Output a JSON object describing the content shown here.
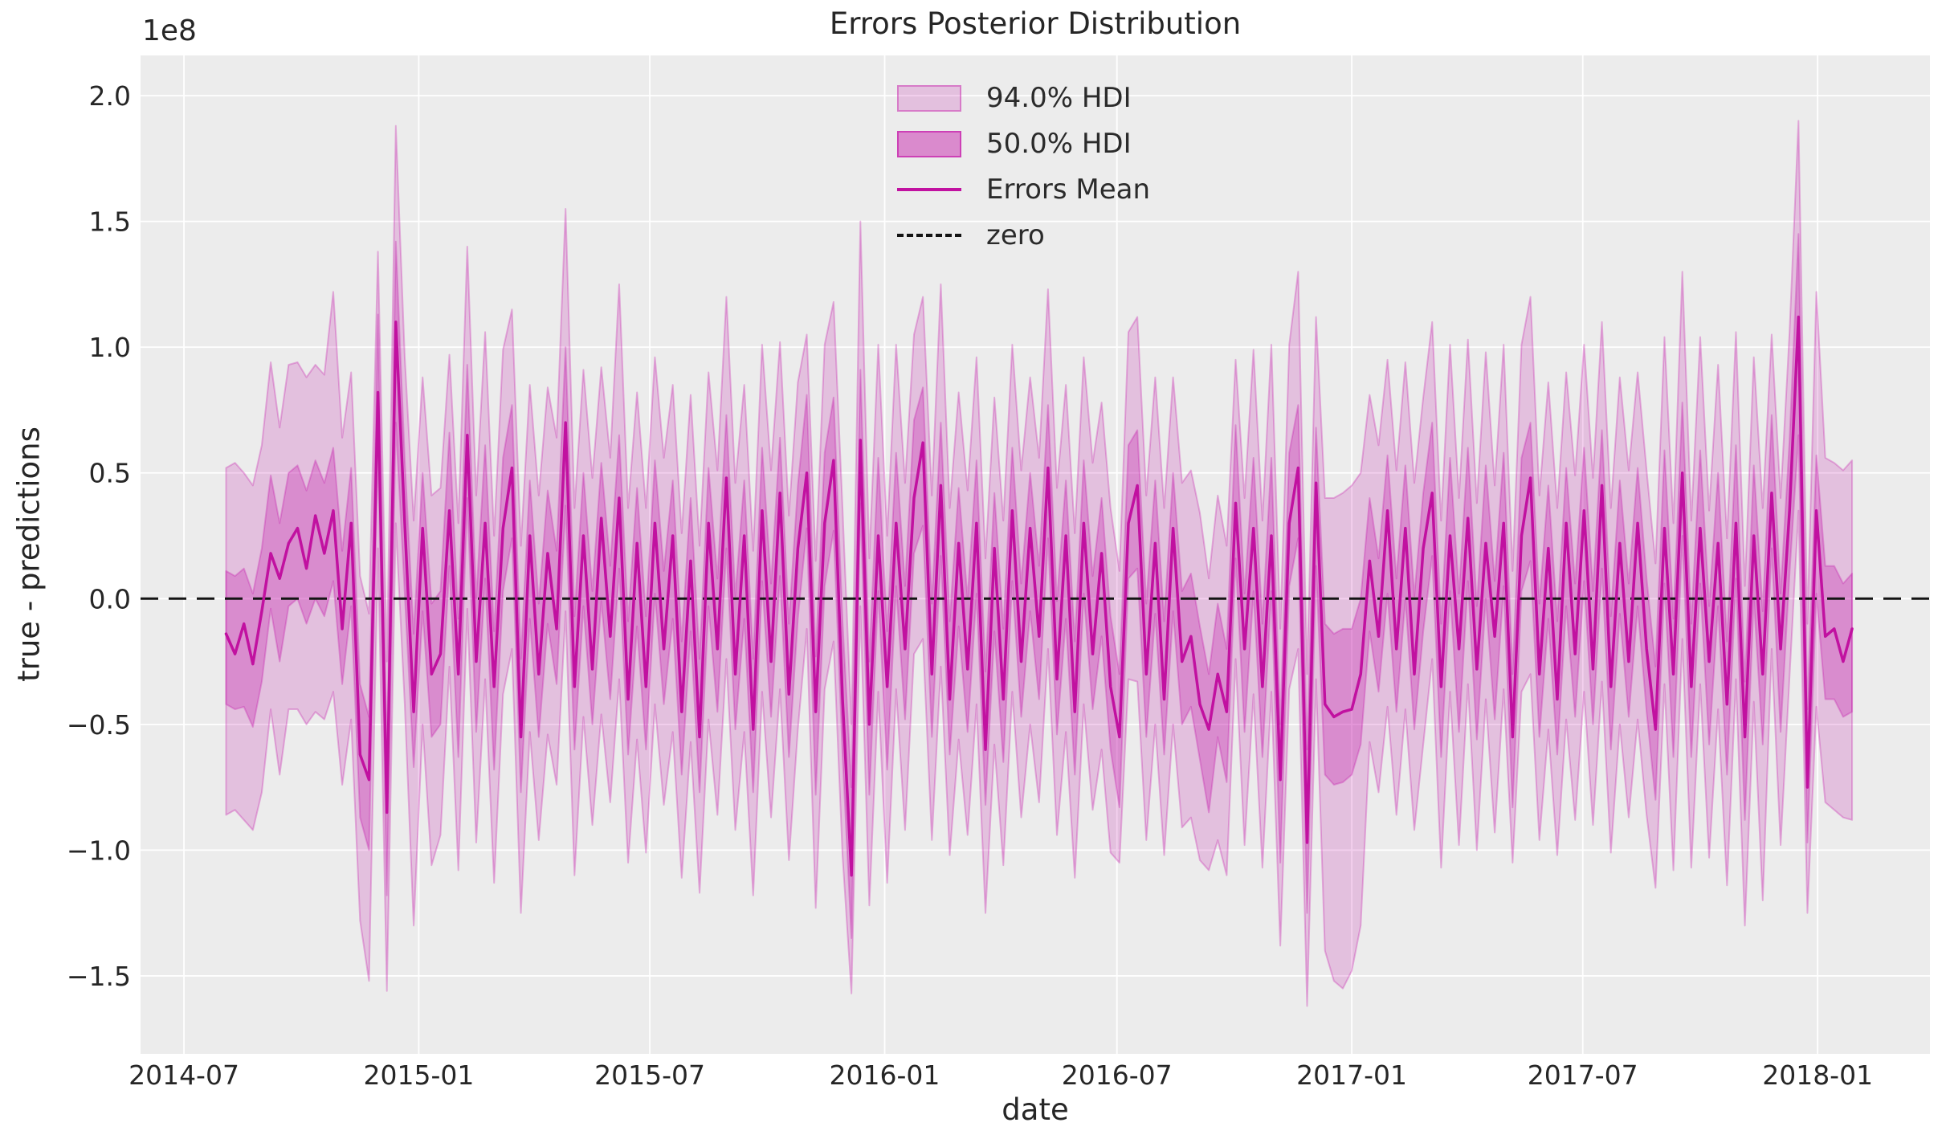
{
  "title": "Errors Posterior Distribution",
  "axes": {
    "xlabel": "date",
    "ylabel": "true - predictions",
    "offset_text": "1e8"
  },
  "legend": [
    {
      "label": "94.0% HDI",
      "swatch": "hdi94"
    },
    {
      "label": "50.0% HDI",
      "swatch": "hdi50"
    },
    {
      "label": "Errors Mean",
      "swatch": "mean"
    },
    {
      "label": "zero",
      "swatch": "zero"
    }
  ],
  "style": {
    "figure_bg": "#ffffff",
    "axes_bg": "#ececec",
    "grid_color": "#ffffff",
    "hdi94_fill": "rgba(197,19,168,0.20)",
    "hdi50_fill": "rgba(197,19,168,0.30)",
    "band_edge": "rgba(197,19,168,0.30)",
    "mean_line": "#c111a0",
    "zero_line": "#141414",
    "text_color": "#262626"
  },
  "chart_data": {
    "type": "line",
    "title": "Errors Posterior Distribution",
    "xlabel": "date",
    "ylabel": "true - predictions",
    "y_scale_factor": 100000000.0,
    "grid": true,
    "legend_position": "upper center",
    "x_start": "2014-08-03",
    "x_interval_days": 7,
    "n_points": 183,
    "xlim": [
      "2014-05-28",
      "2018-03-30"
    ],
    "ylim": [
      -1.81,
      2.16
    ],
    "x_ticks": [
      "2014-07-01",
      "2015-01-01",
      "2015-07-01",
      "2016-01-01",
      "2016-07-01",
      "2017-01-01",
      "2017-07-01",
      "2018-01-01"
    ],
    "x_tick_labels": [
      "2014-07",
      "2015-01",
      "2015-07",
      "2016-01",
      "2016-07",
      "2017-01",
      "2017-07",
      "2018-01"
    ],
    "y_ticks": [
      2.0,
      1.5,
      1.0,
      0.5,
      0.0,
      -0.5,
      -1.0,
      -1.5
    ],
    "y_tick_labels": [
      "2.0",
      "1.5",
      "1.0",
      "0.5",
      "0.0",
      "−0.5",
      "−1.0",
      "−1.5"
    ],
    "zero_value": 0,
    "series": [
      {
        "name": "Errors Mean",
        "type": "line",
        "values": [
          -0.14,
          -0.22,
          -0.1,
          -0.26,
          -0.05,
          0.18,
          0.08,
          0.22,
          0.28,
          0.12,
          0.33,
          0.18,
          0.35,
          -0.12,
          0.3,
          -0.62,
          -0.72,
          0.82,
          -0.85,
          1.1,
          0.3,
          -0.45,
          0.28,
          -0.3,
          -0.22,
          0.35,
          -0.3,
          0.65,
          -0.25,
          0.3,
          -0.35,
          0.28,
          0.52,
          -0.55,
          0.25,
          -0.3,
          0.18,
          -0.12,
          0.7,
          -0.35,
          0.25,
          -0.28,
          0.32,
          -0.15,
          0.4,
          -0.4,
          0.22,
          -0.35,
          0.3,
          -0.2,
          0.25,
          -0.45,
          0.15,
          -0.55,
          0.3,
          -0.2,
          0.48,
          -0.3,
          0.25,
          -0.52,
          0.35,
          -0.25,
          0.42,
          -0.38,
          0.2,
          0.5,
          -0.45,
          0.3,
          0.55,
          -0.4,
          -1.1,
          0.63,
          -0.5,
          0.25,
          -0.35,
          0.3,
          -0.2,
          0.4,
          0.62,
          -0.3,
          0.45,
          -0.4,
          0.22,
          -0.28,
          0.3,
          -0.6,
          0.2,
          -0.4,
          0.35,
          -0.25,
          0.28,
          -0.15,
          0.52,
          -0.32,
          0.25,
          -0.45,
          0.3,
          -0.22,
          0.18,
          -0.35,
          -0.55,
          0.3,
          0.45,
          -0.3,
          0.22,
          -0.4,
          0.28,
          -0.25,
          -0.15,
          -0.42,
          -0.52,
          -0.3,
          -0.45,
          0.38,
          -0.2,
          0.28,
          -0.35,
          0.25,
          -0.72,
          0.3,
          0.52,
          -0.97,
          0.46,
          -0.42,
          -0.47,
          -0.45,
          -0.44,
          -0.3,
          0.15,
          -0.15,
          0.35,
          -0.2,
          0.28,
          -0.3,
          0.2,
          0.42,
          -0.35,
          0.25,
          -0.2,
          0.32,
          -0.28,
          0.22,
          -0.15,
          0.3,
          -0.55,
          0.25,
          0.48,
          -0.3,
          0.2,
          -0.4,
          0.3,
          -0.22,
          0.35,
          -0.28,
          0.45,
          -0.35,
          0.22,
          -0.25,
          0.3,
          -0.2,
          -0.52,
          0.28,
          -0.3,
          0.5,
          -0.35,
          0.28,
          -0.25,
          0.22,
          -0.42,
          0.3,
          -0.55,
          0.25,
          -0.3,
          0.42,
          -0.2,
          0.35,
          1.12,
          -0.75,
          0.35,
          -0.15,
          -0.12,
          -0.25,
          -0.12
        ]
      },
      {
        "name": "50.0% HDI",
        "type": "band",
        "high": [
          0.11,
          0.09,
          0.12,
          0.02,
          0.2,
          0.49,
          0.3,
          0.5,
          0.53,
          0.43,
          0.55,
          0.46,
          0.6,
          0.19,
          0.52,
          -0.34,
          -0.47,
          1.13,
          -0.63,
          1.42,
          0.55,
          -0.14,
          0.5,
          -0.02,
          0.03,
          0.66,
          -0.08,
          0.93,
          0.0,
          0.61,
          -0.13,
          0.56,
          0.77,
          -0.24,
          0.47,
          -0.02,
          0.43,
          0.19,
          1.0,
          -0.07,
          0.5,
          0.03,
          0.54,
          0.13,
          0.65,
          -0.09,
          0.44,
          -0.07,
          0.55,
          0.11,
          0.47,
          -0.17,
          0.4,
          -0.24,
          0.52,
          0.08,
          0.73,
          0.01,
          0.47,
          -0.24,
          0.6,
          0.06,
          0.64,
          -0.1,
          0.45,
          0.81,
          -0.23,
          0.58,
          0.8,
          -0.09,
          -0.75,
          0.91,
          -0.25,
          0.56,
          -0.13,
          0.58,
          0.05,
          0.71,
          0.84,
          -0.02,
          0.7,
          -0.09,
          0.44,
          0.0,
          0.55,
          -0.29,
          0.42,
          -0.12,
          0.6,
          0.06,
          0.5,
          0.13,
          0.77,
          -0.01,
          0.47,
          -0.17,
          0.55,
          0.09,
          0.4,
          -0.07,
          -0.3,
          0.61,
          0.67,
          -0.02,
          0.47,
          -0.09,
          0.5,
          0.03,
          0.1,
          -0.11,
          -0.3,
          -0.02,
          -0.2,
          0.69,
          0.02,
          0.56,
          -0.1,
          0.56,
          -0.5,
          0.58,
          0.77,
          -0.6,
          0.68,
          -0.1,
          -0.14,
          -0.12,
          -0.12,
          0.0,
          0.4,
          0.16,
          0.57,
          0.08,
          0.53,
          0.01,
          0.42,
          0.7,
          -0.1,
          0.56,
          0.02,
          0.6,
          -0.03,
          0.53,
          0.07,
          0.58,
          -0.3,
          0.56,
          0.7,
          -0.02,
          0.45,
          -0.09,
          0.52,
          0.06,
          0.6,
          0.03,
          0.67,
          -0.07,
          0.47,
          0.06,
          0.52,
          0.08,
          -0.27,
          0.59,
          -0.08,
          0.78,
          -0.1,
          0.59,
          -0.03,
          0.5,
          -0.17,
          0.61,
          -0.33,
          0.53,
          -0.05,
          0.73,
          0.02,
          0.63,
          1.45,
          -0.44,
          0.57,
          0.13,
          0.13,
          0.06,
          0.1
        ],
        "low": [
          -0.42,
          -0.44,
          -0.43,
          -0.51,
          -0.33,
          -0.04,
          -0.25,
          -0.03,
          0.0,
          -0.1,
          0.0,
          -0.07,
          0.07,
          -0.34,
          -0.03,
          -0.87,
          -1.0,
          0.6,
          -1.18,
          0.7,
          0.02,
          -0.67,
          -0.05,
          -0.55,
          -0.5,
          0.13,
          -0.63,
          0.4,
          -0.53,
          0.08,
          -0.68,
          0.03,
          0.24,
          -0.77,
          -0.08,
          -0.55,
          -0.1,
          -0.34,
          0.37,
          -0.6,
          -0.03,
          -0.5,
          -0.01,
          -0.4,
          0.12,
          -0.62,
          -0.11,
          -0.6,
          0.02,
          -0.42,
          -0.08,
          -0.7,
          -0.13,
          -0.77,
          -0.03,
          -0.45,
          0.2,
          -0.52,
          -0.08,
          -0.77,
          0.07,
          -0.47,
          0.09,
          -0.63,
          -0.08,
          0.28,
          -0.78,
          0.05,
          0.27,
          -0.62,
          -1.35,
          0.38,
          -0.78,
          0.03,
          -0.68,
          0.05,
          -0.48,
          0.18,
          0.29,
          -0.55,
          0.17,
          -0.62,
          -0.11,
          -0.53,
          0.02,
          -0.82,
          -0.13,
          -0.65,
          0.07,
          -0.47,
          -0.05,
          -0.4,
          0.24,
          -0.54,
          -0.08,
          -0.7,
          0.02,
          -0.44,
          -0.15,
          -0.6,
          -0.83,
          0.08,
          0.12,
          -0.55,
          -0.06,
          -0.62,
          -0.05,
          -0.5,
          -0.43,
          -0.64,
          -0.85,
          -0.55,
          -0.73,
          0.16,
          -0.53,
          0.03,
          -0.63,
          0.03,
          -1.05,
          0.05,
          0.24,
          -1.25,
          0.13,
          -0.7,
          -0.74,
          -0.73,
          -0.7,
          -0.58,
          -0.13,
          -0.37,
          0.02,
          -0.45,
          0.0,
          -0.52,
          -0.13,
          0.17,
          -0.63,
          0.03,
          -0.53,
          0.07,
          -0.56,
          0.0,
          -0.48,
          0.05,
          -0.83,
          0.03,
          0.15,
          -0.55,
          -0.08,
          -0.62,
          -0.03,
          -0.47,
          0.07,
          -0.5,
          0.12,
          -0.6,
          -0.06,
          -0.47,
          -0.03,
          -0.45,
          -0.8,
          0.06,
          -0.63,
          0.25,
          -0.63,
          0.06,
          -0.58,
          -0.03,
          -0.7,
          0.08,
          -0.88,
          0.0,
          -0.58,
          0.2,
          -0.53,
          0.1,
          0.65,
          -0.97,
          0.02,
          -0.4,
          -0.4,
          -0.47,
          -0.45
        ]
      },
      {
        "name": "94.0% HDI",
        "type": "band",
        "high": [
          0.52,
          0.54,
          0.5,
          0.45,
          0.61,
          0.94,
          0.68,
          0.93,
          0.94,
          0.88,
          0.93,
          0.89,
          1.22,
          0.64,
          0.9,
          0.09,
          -0.06,
          1.38,
          -0.25,
          1.88,
          0.96,
          0.31,
          0.88,
          0.41,
          0.44,
          0.97,
          0.3,
          1.4,
          0.41,
          1.06,
          0.25,
          0.99,
          1.15,
          0.21,
          0.85,
          0.41,
          0.84,
          0.64,
          1.55,
          0.36,
          0.91,
          0.48,
          0.92,
          0.56,
          1.25,
          0.36,
          0.82,
          0.36,
          0.96,
          0.56,
          0.85,
          0.26,
          0.81,
          0.21,
          0.9,
          0.51,
          1.2,
          0.46,
          0.85,
          0.19,
          1.01,
          0.51,
          1.02,
          0.33,
          0.86,
          1.05,
          0.15,
          1.01,
          1.18,
          0.36,
          -0.5,
          1.5,
          0.16,
          1.01,
          0.25,
          1.01,
          0.46,
          1.05,
          1.2,
          0.41,
          1.25,
          0.36,
          0.82,
          0.43,
          0.96,
          0.16,
          0.8,
          0.31,
          1.01,
          0.51,
          0.88,
          0.56,
          1.23,
          0.44,
          0.85,
          0.26,
          0.96,
          0.54,
          0.78,
          0.36,
          0.11,
          1.06,
          1.12,
          0.41,
          0.88,
          0.36,
          0.88,
          0.46,
          0.51,
          0.34,
          0.08,
          0.41,
          0.21,
          0.95,
          0.4,
          0.99,
          0.31,
          1.01,
          -0.12,
          1.01,
          1.3,
          -0.3,
          1.12,
          0.4,
          0.4,
          0.42,
          0.45,
          0.5,
          0.81,
          0.61,
          0.95,
          0.51,
          0.94,
          0.46,
          0.8,
          1.1,
          0.31,
          1.01,
          0.4,
          1.03,
          0.38,
          0.98,
          0.45,
          1.01,
          0.11,
          1.01,
          1.2,
          0.41,
          0.86,
          0.36,
          0.9,
          0.49,
          1.01,
          0.48,
          1.1,
          0.36,
          0.88,
          0.51,
          0.9,
          0.51,
          0.14,
          1.04,
          0.3,
          1.3,
          0.31,
          1.04,
          0.35,
          0.93,
          0.24,
          1.06,
          0.05,
          0.96,
          0.36,
          1.05,
          0.4,
          1.06,
          1.9,
          -0.1,
          1.22,
          0.56,
          0.54,
          0.51,
          0.55
        ],
        "low": [
          -0.86,
          -0.84,
          -0.88,
          -0.92,
          -0.77,
          -0.44,
          -0.7,
          -0.44,
          -0.44,
          -0.5,
          -0.45,
          -0.48,
          -0.37,
          -0.74,
          -0.48,
          -1.28,
          -1.52,
          0.2,
          -1.56,
          0.3,
          -0.42,
          -1.3,
          -0.5,
          -1.06,
          -0.94,
          -0.27,
          -1.08,
          -0.04,
          -0.97,
          -0.32,
          -1.13,
          -0.38,
          -0.2,
          -1.25,
          -0.53,
          -0.96,
          -0.54,
          -0.74,
          -0.05,
          -1.1,
          -0.47,
          -0.9,
          -0.46,
          -0.81,
          -0.32,
          -1.05,
          -0.56,
          -1.01,
          -0.42,
          -0.82,
          -0.53,
          -1.11,
          -0.57,
          -1.17,
          -0.48,
          -0.86,
          -0.24,
          -0.92,
          -0.53,
          -1.18,
          -0.37,
          -0.87,
          -0.36,
          -1.04,
          -0.52,
          -0.12,
          -1.23,
          -0.36,
          -0.17,
          -1.02,
          -1.57,
          -0.03,
          -1.22,
          -0.37,
          -1.13,
          -0.36,
          -0.92,
          -0.22,
          -0.16,
          -0.96,
          -0.27,
          -1.02,
          -0.56,
          -0.94,
          -0.42,
          -1.25,
          -0.58,
          -1.06,
          -0.37,
          -0.87,
          -0.5,
          -0.81,
          -0.2,
          -0.94,
          -0.53,
          -1.11,
          -0.42,
          -0.84,
          -0.6,
          -1.01,
          -1.05,
          -0.32,
          -0.33,
          -0.96,
          -0.5,
          -1.02,
          -0.5,
          -0.91,
          -0.87,
          -1.04,
          -1.08,
          -0.96,
          -1.1,
          -0.24,
          -0.98,
          -0.38,
          -1.07,
          -0.37,
          -1.38,
          -0.36,
          -0.2,
          -1.62,
          -0.32,
          -1.4,
          -1.52,
          -1.55,
          -1.48,
          -1.3,
          -0.57,
          -0.77,
          -0.43,
          -0.86,
          -0.44,
          -0.92,
          -0.58,
          -0.24,
          -1.07,
          -0.37,
          -0.98,
          -0.34,
          -1.0,
          -0.4,
          -0.93,
          -0.36,
          -1.05,
          -0.37,
          -0.3,
          -0.96,
          -0.52,
          -1.02,
          -0.48,
          -0.88,
          -0.37,
          -0.9,
          -0.33,
          -1.01,
          -0.5,
          -0.87,
          -0.48,
          -0.86,
          -1.15,
          -0.34,
          -1.08,
          -0.16,
          -1.07,
          -0.34,
          -1.03,
          -0.44,
          -1.14,
          -0.32,
          -1.3,
          -0.41,
          -1.2,
          -0.2,
          -0.98,
          -0.31,
          0.35,
          -1.25,
          -0.43,
          -0.81,
          -0.84,
          -0.87,
          -0.88
        ]
      },
      {
        "name": "zero",
        "type": "hline",
        "value": 0
      }
    ]
  }
}
